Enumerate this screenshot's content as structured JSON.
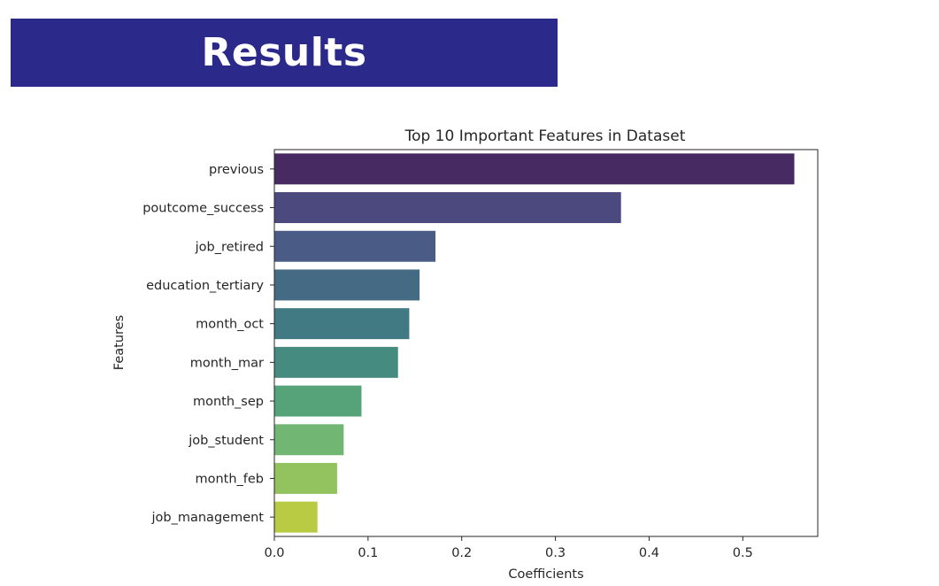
{
  "slide": {
    "heading": "Results",
    "banner_color": "#2b2a8a"
  },
  "chart_data": {
    "type": "bar",
    "orientation": "horizontal",
    "title": "Top 10 Important Features in Dataset",
    "xlabel": "Coefficients",
    "ylabel": "Features",
    "xlim": [
      0,
      0.58
    ],
    "xticks": [
      "0.0",
      "0.1",
      "0.2",
      "0.3",
      "0.4",
      "0.5"
    ],
    "grid": false,
    "categories": [
      "previous",
      "poutcome_success",
      "job_retired",
      "education_tertiary",
      "month_oct",
      "month_mar",
      "month_sep",
      "job_student",
      "month_feb",
      "job_management"
    ],
    "values": [
      0.555,
      0.37,
      0.172,
      0.155,
      0.144,
      0.132,
      0.093,
      0.074,
      0.067,
      0.046
    ],
    "colors": [
      "#482a63",
      "#4b497e",
      "#4a5c85",
      "#456b84",
      "#417a82",
      "#468b7f",
      "#56a379",
      "#72b673",
      "#92c35f",
      "#b8cb43"
    ]
  }
}
